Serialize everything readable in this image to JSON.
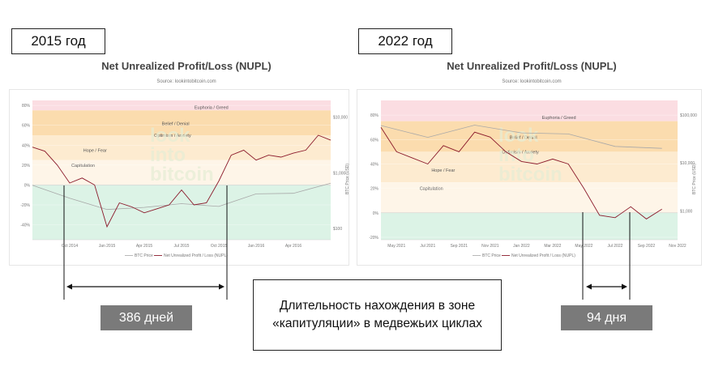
{
  "left": {
    "year_label": "2015 год",
    "days_label": "386 дней"
  },
  "right": {
    "year_label": "2022 год",
    "days_label": "94 дня"
  },
  "caption": {
    "line1": "Длительность нахождения в зоне",
    "line2": "«капитуляции» в медвежьих циклах"
  },
  "colors": {
    "euphoria": "#fbdde2",
    "belief": "#fbdcae",
    "optimism": "#fdebd0",
    "hope": "#fef5e8",
    "capitulation": "#dcf3e6",
    "nupl_line": "#8b1a2b",
    "price_line": "#a8a8a8",
    "watermark": "#e4ecd4"
  },
  "watermark": [
    "look",
    "into",
    "bitcoin"
  ],
  "chart_data": [
    {
      "type": "line",
      "title": "Net Unrealized Profit/Loss (NUPL)",
      "source": "Source: lookintobitcoin.com",
      "x_ticks": [
        "Oct 2014",
        "Jan 2015",
        "Apr 2015",
        "Jul 2015",
        "Oct 2015",
        "Jan 2016",
        "Apr 2016"
      ],
      "y_left_ticks": [
        "80%",
        "60%",
        "40%",
        "20%",
        "0%",
        "-20%",
        "-40%"
      ],
      "y_right_ticks": [
        "$10,000",
        "$1,000",
        "$100"
      ],
      "y_right_label": "BTC Price (USD)",
      "ylim": [
        -0.55,
        0.85
      ],
      "zones": [
        "Euphoria / Greed",
        "Belief / Denial",
        "Optimism / Anxiety",
        "Hope / Fear",
        "Capitulation"
      ],
      "legend": [
        "BTC Price",
        "Net Unrealized Profit / Loss (NUPL)"
      ],
      "series": [
        {
          "name": "Net Unrealized Profit / Loss (NUPL)",
          "x": [
            "2014-07",
            "2014-08",
            "2014-09",
            "2014-10",
            "2014-11",
            "2014-12",
            "2015-01",
            "2015-02",
            "2015-03",
            "2015-04",
            "2015-05",
            "2015-06",
            "2015-07",
            "2015-08",
            "2015-09",
            "2015-10",
            "2015-11",
            "2015-12",
            "2016-01",
            "2016-02",
            "2016-03",
            "2016-04",
            "2016-05",
            "2016-06",
            "2016-07"
          ],
          "values": [
            0.38,
            0.34,
            0.2,
            0.02,
            0.07,
            0.0,
            -0.42,
            -0.18,
            -0.22,
            -0.28,
            -0.24,
            -0.2,
            -0.05,
            -0.2,
            -0.18,
            0.04,
            0.3,
            0.35,
            0.25,
            0.3,
            0.28,
            0.32,
            0.35,
            0.5,
            0.45
          ]
        },
        {
          "name": "BTC Price",
          "x": [
            "2014-07",
            "2014-10",
            "2015-01",
            "2015-04",
            "2015-07",
            "2015-10",
            "2016-01",
            "2016-04",
            "2016-07"
          ],
          "values": [
            600,
            350,
            220,
            240,
            280,
            250,
            420,
            430,
            650
          ]
        }
      ]
    },
    {
      "type": "line",
      "title": "Net Unrealized Profit/Loss (NUPL)",
      "source": "Source: lookintobitcoin.com",
      "x_ticks": [
        "May 2021",
        "Jul 2021",
        "Sep 2021",
        "Nov 2021",
        "Jan 2022",
        "Mar 2022",
        "May 2022",
        "Jul 2022",
        "Sep 2022",
        "Nov 2022"
      ],
      "y_left_ticks": [
        "80%",
        "60%",
        "40%",
        "20%",
        "0%",
        "-20%"
      ],
      "y_right_ticks": [
        "$100,000",
        "$10,000",
        "$1,000"
      ],
      "y_right_label": "BTC Price (USD)",
      "ylim": [
        -0.22,
        0.92
      ],
      "zones": [
        "Euphoria / Greed",
        "Belief / Denial",
        "Optimism / Anxiety",
        "Hope / Fear",
        "Capitulation"
      ],
      "legend": [
        "BTC Price",
        "Net Unrealized Profit / Loss (NUPL)"
      ],
      "series": [
        {
          "name": "Net Unrealized Profit / Loss (NUPL)",
          "x": [
            "2021-04",
            "2021-05",
            "2021-06",
            "2021-07",
            "2021-08",
            "2021-09",
            "2021-10",
            "2021-11",
            "2021-12",
            "2022-01",
            "2022-02",
            "2022-03",
            "2022-04",
            "2022-05",
            "2022-06",
            "2022-07",
            "2022-08",
            "2022-09",
            "2022-10"
          ],
          "values": [
            0.7,
            0.5,
            0.45,
            0.4,
            0.55,
            0.5,
            0.66,
            0.62,
            0.5,
            0.42,
            0.4,
            0.44,
            0.4,
            0.2,
            -0.02,
            -0.04,
            0.05,
            -0.05,
            0.03
          ]
        },
        {
          "name": "BTC Price",
          "x": [
            "2021-04",
            "2021-07",
            "2021-10",
            "2022-01",
            "2022-04",
            "2022-07",
            "2022-10"
          ],
          "values": [
            60000,
            34000,
            61000,
            42000,
            40000,
            22000,
            20000
          ]
        }
      ]
    }
  ]
}
